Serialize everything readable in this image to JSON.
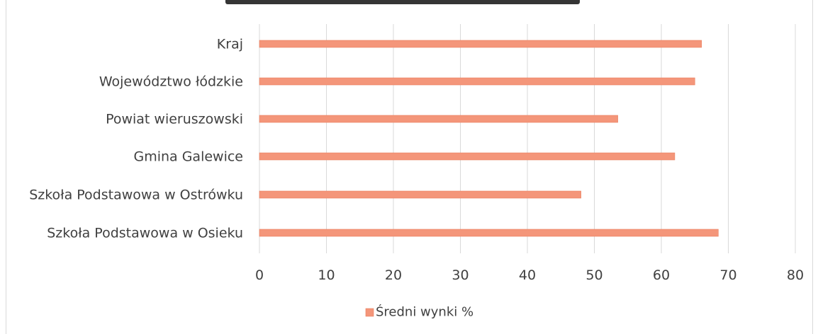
{
  "chart_data": {
    "type": "bar",
    "orientation": "horizontal",
    "title": "",
    "categories": [
      "Kraj",
      "Województwo łódzkie",
      "Powiat wieruszowski",
      "Gmina Galewice",
      "Szkoła Podstawowa w Ostrówku",
      "Szkoła Podstawowa w Osieku"
    ],
    "series": [
      {
        "name": "Średni wynki %",
        "values": [
          66,
          65,
          53.5,
          62,
          48,
          68.5
        ]
      }
    ],
    "xlim": [
      0,
      80
    ],
    "xticks": [
      "0",
      "10",
      "20",
      "30",
      "40",
      "50",
      "60",
      "70",
      "80"
    ],
    "grid": true,
    "legend": "bottom",
    "colors": {
      "bar": "#f4967a",
      "bar_edge": "#e97d5d",
      "grid": "#d9d9d9",
      "text": "#404040"
    }
  }
}
